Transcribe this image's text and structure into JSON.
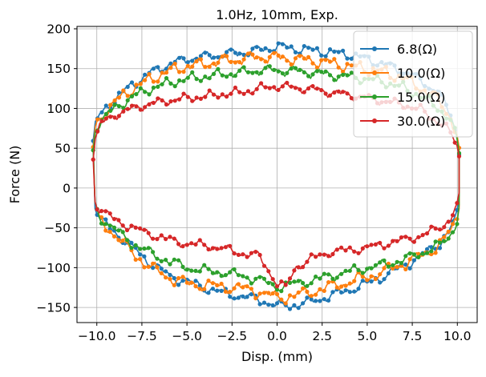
{
  "chart_data": {
    "type": "scatter",
    "title": "1.0Hz, 10mm, Exp.",
    "xlabel": "Disp. (mm)",
    "ylabel": "Force (N)",
    "xlim": [
      -11.1,
      11.1
    ],
    "ylim": [
      -169,
      203
    ],
    "grid": true,
    "legend_position": "top-right",
    "x_ticks": [
      {
        "value": -10.0,
        "label": "−10.0"
      },
      {
        "value": -7.5,
        "label": "−7.5"
      },
      {
        "value": -5.0,
        "label": "−5.0"
      },
      {
        "value": -2.5,
        "label": "−2.5"
      },
      {
        "value": 0.0,
        "label": "0.0"
      },
      {
        "value": 2.5,
        "label": "2.5"
      },
      {
        "value": 5.0,
        "label": "5.0"
      },
      {
        "value": 7.5,
        "label": "7.5"
      },
      {
        "value": 10.0,
        "label": "10.0"
      }
    ],
    "y_ticks": [
      {
        "value": -150,
        "label": "−150"
      },
      {
        "value": -100,
        "label": "−100"
      },
      {
        "value": -50,
        "label": "−50"
      },
      {
        "value": 0,
        "label": "0"
      },
      {
        "value": 50,
        "label": "50"
      },
      {
        "value": 100,
        "label": "100"
      },
      {
        "value": 150,
        "label": "150"
      },
      {
        "value": 200,
        "label": "200"
      }
    ],
    "series": [
      {
        "name": "6.8(Ω)",
        "color": "#1f77b4",
        "upper": [
          [
            -10.2,
            55
          ],
          [
            -10.1,
            80
          ],
          [
            -9.8,
            92
          ],
          [
            -9.0,
            112
          ],
          [
            -8.0,
            130
          ],
          [
            -7.0,
            145
          ],
          [
            -6.0,
            155
          ],
          [
            -5.0,
            162
          ],
          [
            -4.0,
            165
          ],
          [
            -3.0,
            168
          ],
          [
            -2.0,
            170
          ],
          [
            -1.0,
            173
          ],
          [
            0.0,
            178
          ],
          [
            1.0,
            175
          ],
          [
            2.0,
            173
          ],
          [
            3.0,
            170
          ],
          [
            4.0,
            168
          ],
          [
            5.0,
            162
          ],
          [
            6.0,
            155
          ],
          [
            7.0,
            147
          ],
          [
            8.0,
            135
          ],
          [
            9.0,
            118
          ],
          [
            9.6,
            95
          ],
          [
            10.0,
            65
          ],
          [
            10.1,
            45
          ]
        ],
        "lower": [
          [
            -10.1,
            -20
          ],
          [
            -9.9,
            -38
          ],
          [
            -9.0,
            -55
          ],
          [
            -8.0,
            -75
          ],
          [
            -7.0,
            -95
          ],
          [
            -6.0,
            -110
          ],
          [
            -5.0,
            -118
          ],
          [
            -4.0,
            -125
          ],
          [
            -3.0,
            -132
          ],
          [
            -2.0,
            -136
          ],
          [
            -1.0,
            -140
          ],
          [
            0.0,
            -148
          ],
          [
            1.0,
            -147
          ],
          [
            2.0,
            -142
          ],
          [
            3.0,
            -135
          ],
          [
            4.0,
            -128
          ],
          [
            5.0,
            -120
          ],
          [
            6.0,
            -110
          ],
          [
            7.0,
            -98
          ],
          [
            8.0,
            -85
          ],
          [
            9.0,
            -70
          ],
          [
            9.6,
            -52
          ],
          [
            10.0,
            -32
          ],
          [
            10.1,
            -15
          ]
        ],
        "amp": 4
      },
      {
        "name": "10.0(Ω)",
        "color": "#ff7f0e",
        "upper": [
          [
            -10.2,
            50
          ],
          [
            -10.1,
            75
          ],
          [
            -9.8,
            88
          ],
          [
            -9.0,
            108
          ],
          [
            -8.0,
            125
          ],
          [
            -7.0,
            137
          ],
          [
            -6.0,
            147
          ],
          [
            -5.0,
            153
          ],
          [
            -4.0,
            156
          ],
          [
            -3.0,
            160
          ],
          [
            -2.0,
            162
          ],
          [
            -1.0,
            165
          ],
          [
            0.0,
            164
          ],
          [
            1.0,
            162
          ],
          [
            2.0,
            160
          ],
          [
            3.0,
            157
          ],
          [
            4.0,
            153
          ],
          [
            5.0,
            150
          ],
          [
            6.0,
            145
          ],
          [
            7.0,
            138
          ],
          [
            8.0,
            126
          ],
          [
            9.0,
            110
          ],
          [
            9.6,
            90
          ],
          [
            10.0,
            62
          ],
          [
            10.1,
            45
          ]
        ],
        "lower": [
          [
            -10.1,
            -22
          ],
          [
            -9.9,
            -40
          ],
          [
            -9.0,
            -58
          ],
          [
            -8.0,
            -82
          ],
          [
            -7.0,
            -100
          ],
          [
            -6.0,
            -112
          ],
          [
            -5.0,
            -120
          ],
          [
            -4.0,
            -122
          ],
          [
            -3.0,
            -124
          ],
          [
            -2.0,
            -126
          ],
          [
            -1.0,
            -130
          ],
          [
            0.0,
            -138
          ],
          [
            1.0,
            -135
          ],
          [
            2.0,
            -130
          ],
          [
            3.0,
            -124
          ],
          [
            4.0,
            -118
          ],
          [
            5.0,
            -112
          ],
          [
            6.0,
            -104
          ],
          [
            7.0,
            -95
          ],
          [
            8.0,
            -85
          ],
          [
            9.0,
            -72
          ],
          [
            9.6,
            -55
          ],
          [
            10.0,
            -35
          ],
          [
            10.1,
            -18
          ]
        ],
        "amp": 5
      },
      {
        "name": "15.0(Ω)",
        "color": "#2ca02c",
        "upper": [
          [
            -10.2,
            48
          ],
          [
            -10.1,
            72
          ],
          [
            -9.8,
            85
          ],
          [
            -9.0,
            100
          ],
          [
            -8.0,
            115
          ],
          [
            -7.0,
            125
          ],
          [
            -6.0,
            132
          ],
          [
            -5.0,
            137
          ],
          [
            -4.0,
            140
          ],
          [
            -3.0,
            143
          ],
          [
            -2.0,
            145
          ],
          [
            -1.0,
            148
          ],
          [
            0.0,
            148
          ],
          [
            1.0,
            147
          ],
          [
            2.0,
            145
          ],
          [
            3.0,
            142
          ],
          [
            4.0,
            140
          ],
          [
            5.0,
            137
          ],
          [
            6.0,
            133
          ],
          [
            7.0,
            126
          ],
          [
            8.0,
            115
          ],
          [
            9.0,
            100
          ],
          [
            9.6,
            85
          ],
          [
            10.0,
            60
          ],
          [
            10.1,
            45
          ]
        ],
        "lower": [
          [
            -10.1,
            -20
          ],
          [
            -9.9,
            -35
          ],
          [
            -9.0,
            -52
          ],
          [
            -8.0,
            -70
          ],
          [
            -7.0,
            -82
          ],
          [
            -6.0,
            -92
          ],
          [
            -5.0,
            -100
          ],
          [
            -4.0,
            -104
          ],
          [
            -3.0,
            -106
          ],
          [
            -2.0,
            -110
          ],
          [
            -1.0,
            -115
          ],
          [
            0.0,
            -124
          ],
          [
            1.0,
            -120
          ],
          [
            2.0,
            -116
          ],
          [
            3.0,
            -110
          ],
          [
            4.0,
            -105
          ],
          [
            5.0,
            -100
          ],
          [
            6.0,
            -96
          ],
          [
            7.0,
            -90
          ],
          [
            8.0,
            -82
          ],
          [
            9.0,
            -72
          ],
          [
            9.6,
            -60
          ],
          [
            10.0,
            -40
          ],
          [
            10.1,
            -20
          ]
        ],
        "amp": 4
      },
      {
        "name": "30.0(Ω)",
        "color": "#d62728",
        "upper": [
          [
            -10.2,
            40
          ],
          [
            -10.1,
            62
          ],
          [
            -9.8,
            80
          ],
          [
            -9.0,
            92
          ],
          [
            -8.0,
            100
          ],
          [
            -7.0,
            106
          ],
          [
            -6.0,
            110
          ],
          [
            -5.0,
            113
          ],
          [
            -4.0,
            115
          ],
          [
            -3.0,
            118
          ],
          [
            -2.0,
            120
          ],
          [
            -1.0,
            125
          ],
          [
            0.0,
            128
          ],
          [
            1.0,
            126
          ],
          [
            2.0,
            124
          ],
          [
            3.0,
            120
          ],
          [
            4.0,
            117
          ],
          [
            5.0,
            113
          ],
          [
            6.0,
            109
          ],
          [
            7.0,
            105
          ],
          [
            8.0,
            98
          ],
          [
            9.0,
            82
          ],
          [
            9.6,
            70
          ],
          [
            10.0,
            55
          ],
          [
            10.1,
            40
          ]
        ],
        "lower": [
          [
            -10.1,
            -15
          ],
          [
            -9.9,
            -25
          ],
          [
            -9.0,
            -40
          ],
          [
            -8.0,
            -50
          ],
          [
            -7.0,
            -58
          ],
          [
            -6.0,
            -65
          ],
          [
            -5.0,
            -70
          ],
          [
            -4.0,
            -72
          ],
          [
            -3.0,
            -76
          ],
          [
            -2.0,
            -82
          ],
          [
            -1.0,
            -85
          ],
          [
            0.0,
            -120
          ],
          [
            0.5,
            -125
          ],
          [
            1.0,
            -100
          ],
          [
            2.0,
            -88
          ],
          [
            3.0,
            -80
          ],
          [
            4.0,
            -78
          ],
          [
            5.0,
            -75
          ],
          [
            6.0,
            -70
          ],
          [
            7.0,
            -65
          ],
          [
            8.0,
            -60
          ],
          [
            9.0,
            -50
          ],
          [
            9.6,
            -40
          ],
          [
            10.0,
            -20
          ],
          [
            10.1,
            -10
          ]
        ],
        "amp": 3.5
      }
    ]
  }
}
